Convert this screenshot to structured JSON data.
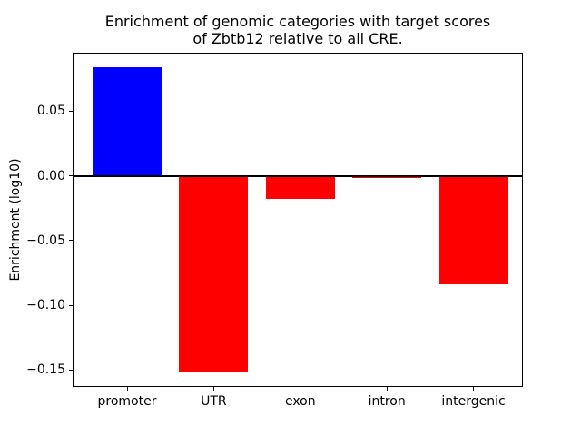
{
  "chart_data": {
    "type": "bar",
    "title": "Enrichment of genomic categories with target scores\nof Zbtb12 relative to all CRE.",
    "ylabel": "Enrichment (log10)",
    "xlabel": "",
    "categories": [
      "promoter",
      "UTR",
      "exon",
      "intron",
      "intergenic"
    ],
    "values": [
      0.084,
      -0.151,
      -0.018,
      -0.002,
      -0.084
    ],
    "bar_colors": [
      "#0000ff",
      "#ff0000",
      "#ff0000",
      "#ff0000",
      "#ff0000"
    ],
    "positive_color": "#0000ff",
    "negative_color": "#ff0000",
    "ylim": [
      -0.163,
      0.095
    ],
    "y_ticks": [
      {
        "label": "0.05",
        "value": 0.05
      },
      {
        "label": "0.00",
        "value": 0.0
      },
      {
        "label": "−0.05",
        "value": -0.05
      },
      {
        "label": "−0.10",
        "value": -0.1
      },
      {
        "label": "−0.15",
        "value": -0.15
      }
    ],
    "zero_line": {
      "color": "#000000",
      "width": 2
    },
    "grid": false,
    "legend": "none",
    "frame_color": "#000000",
    "background": "#ffffff"
  }
}
